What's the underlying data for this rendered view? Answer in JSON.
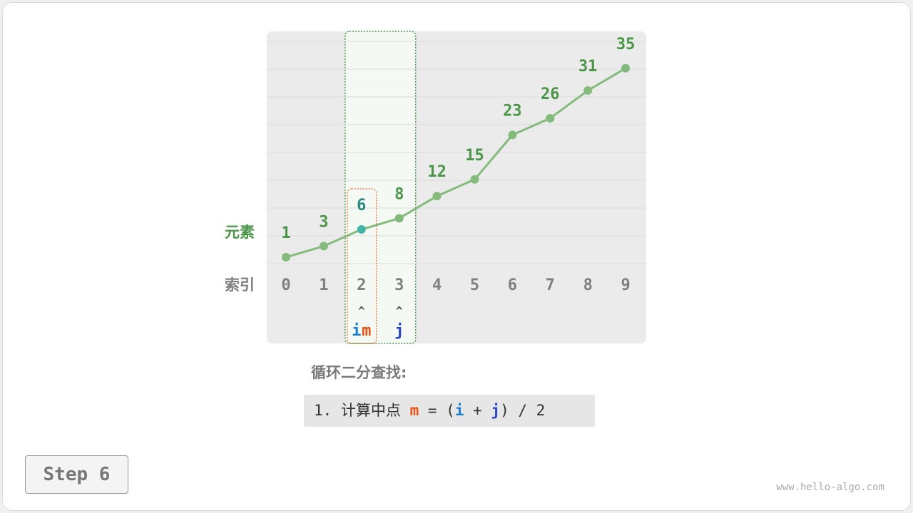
{
  "row_labels": {
    "elements": "元素",
    "index": "索引"
  },
  "array": [
    1,
    3,
    6,
    8,
    12,
    15,
    23,
    26,
    31,
    35
  ],
  "indices": [
    0,
    1,
    2,
    3,
    4,
    5,
    6,
    7,
    8,
    9
  ],
  "pointers": {
    "i": 2,
    "m": 2,
    "j": 3,
    "i_label": "i",
    "m_label": "m",
    "j_label": "j",
    "arrow": "^"
  },
  "highlight_range": [
    2,
    3
  ],
  "colors": {
    "line": "#84bb7d",
    "label": "#4a9548",
    "mid": "#42b5a8",
    "i": "#1c7fd2",
    "m": "#e8500f",
    "j": "#2b46cc",
    "index": "#808080"
  },
  "title": "循环二分查找:",
  "code": {
    "prefix": "1. 计算中点 ",
    "m": "m",
    "eq": " = (",
    "i": "i",
    "plus": " + ",
    "j": "j",
    "suffix": ") / 2"
  },
  "step": "Step 6",
  "watermark": "www.hello-algo.com"
}
